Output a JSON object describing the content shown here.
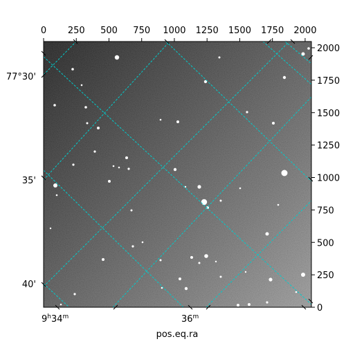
{
  "figure": {
    "xlabel": "pos.eq.ra",
    "top_ticks": [
      "0",
      "250",
      "500",
      "750",
      "1000",
      "1250",
      "1500",
      "1750",
      "2000"
    ],
    "right_ticks": [
      "0",
      "250",
      "500",
      "750",
      "1000",
      "1250",
      "1500",
      "1750",
      "2000"
    ],
    "left_labels": [
      "77°30'",
      "35'",
      "40'"
    ],
    "bottom_labels": [
      {
        "h": "9",
        "hs": "h",
        "m": "34",
        "ms": "m"
      },
      {
        "h": "",
        "hs": "",
        "m": "36",
        "ms": "m"
      }
    ],
    "grid_color": "#00cccc"
  }
}
